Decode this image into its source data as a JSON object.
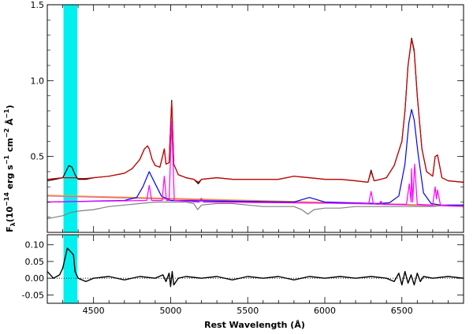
{
  "chart_data": [
    {
      "type": "line",
      "panel": "top",
      "xlabel": "",
      "ylabel": "F",
      "ylabel_sub": "λ",
      "ylabel_units_parts": [
        "(10",
        "−14",
        " erg s",
        "−1",
        " cm",
        "−2",
        " Å",
        "−1",
        ")"
      ],
      "xlim": [
        4200,
        6900
      ],
      "ylim": [
        0,
        1.5
      ],
      "x_ticks": [
        4500,
        5000,
        5500,
        6000,
        6500
      ],
      "y_ticks": [
        0.5,
        1.0,
        1.5
      ],
      "y_tick_labels": [
        "0.5",
        "1.0",
        "1.5"
      ],
      "highlight_band": {
        "x": [
          4305,
          4395
        ],
        "color": "#00f0f0"
      },
      "series": [
        {
          "color": "#000000",
          "x": [
            4200,
            4250,
            4300,
            4320,
            4340,
            4360,
            4380,
            4400,
            4450,
            4500,
            4600,
            4700,
            4750,
            4800,
            4830,
            4850,
            4861,
            4880,
            4900,
            4930,
            4945,
            4959,
            4970,
            4990,
            5007,
            5020,
            5050,
            5100,
            5150,
            5180,
            5200,
            5300,
            5400,
            5500,
            5600,
            5700,
            5800,
            5900,
            6000,
            6100,
            6200,
            6280,
            6300,
            6320,
            6364,
            6400,
            6450,
            6500,
            6520,
            6540,
            6563,
            6580,
            6600,
            6630,
            6660,
            6700,
            6716,
            6731,
            6760,
            6800,
            6900
          ],
          "y": [
            0.34,
            0.35,
            0.36,
            0.4,
            0.44,
            0.43,
            0.38,
            0.35,
            0.35,
            0.36,
            0.37,
            0.39,
            0.42,
            0.48,
            0.55,
            0.57,
            0.55,
            0.48,
            0.44,
            0.43,
            0.49,
            0.55,
            0.45,
            0.46,
            0.87,
            0.45,
            0.38,
            0.36,
            0.35,
            0.32,
            0.35,
            0.36,
            0.35,
            0.35,
            0.35,
            0.35,
            0.37,
            0.36,
            0.35,
            0.35,
            0.34,
            0.33,
            0.41,
            0.34,
            0.35,
            0.36,
            0.44,
            0.6,
            0.8,
            1.1,
            1.28,
            1.2,
            0.9,
            0.55,
            0.4,
            0.37,
            0.5,
            0.51,
            0.36,
            0.34,
            0.33
          ]
        },
        {
          "color": "#d00000",
          "x": [
            4200,
            4250,
            4300,
            4320,
            4340,
            4360,
            4380,
            4400,
            4450,
            4500,
            4600,
            4700,
            4750,
            4800,
            4830,
            4850,
            4861,
            4880,
            4900,
            4930,
            4945,
            4959,
            4970,
            4990,
            5007,
            5020,
            5050,
            5100,
            5150,
            5180,
            5200,
            5300,
            5400,
            5500,
            5600,
            5700,
            5800,
            5900,
            6000,
            6100,
            6200,
            6280,
            6300,
            6320,
            6364,
            6400,
            6450,
            6500,
            6520,
            6540,
            6563,
            6580,
            6600,
            6630,
            6660,
            6700,
            6716,
            6731,
            6760,
            6800,
            6900
          ],
          "y": [
            0.35,
            0.355,
            0.36,
            0.36,
            0.36,
            0.36,
            0.36,
            0.355,
            0.355,
            0.36,
            0.37,
            0.39,
            0.42,
            0.48,
            0.55,
            0.57,
            0.55,
            0.48,
            0.44,
            0.43,
            0.49,
            0.55,
            0.45,
            0.46,
            0.86,
            0.45,
            0.38,
            0.36,
            0.35,
            0.33,
            0.35,
            0.36,
            0.35,
            0.35,
            0.35,
            0.35,
            0.37,
            0.36,
            0.35,
            0.35,
            0.34,
            0.33,
            0.4,
            0.34,
            0.35,
            0.36,
            0.44,
            0.6,
            0.8,
            1.1,
            1.27,
            1.19,
            0.9,
            0.55,
            0.4,
            0.37,
            0.5,
            0.51,
            0.36,
            0.34,
            0.33
          ]
        },
        {
          "color": "#808080",
          "x": [
            4200,
            4300,
            4350,
            4400,
            4500,
            4600,
            4700,
            4800,
            4900,
            5000,
            5100,
            5150,
            5175,
            5200,
            5300,
            5400,
            5500,
            5600,
            5700,
            5800,
            5850,
            5890,
            5930,
            6000,
            6100,
            6200,
            6300,
            6400,
            6500,
            6600,
            6700,
            6800,
            6900
          ],
          "y": [
            0.09,
            0.11,
            0.13,
            0.14,
            0.15,
            0.17,
            0.18,
            0.19,
            0.2,
            0.2,
            0.2,
            0.19,
            0.15,
            0.18,
            0.19,
            0.19,
            0.18,
            0.17,
            0.17,
            0.17,
            0.15,
            0.12,
            0.15,
            0.16,
            0.16,
            0.17,
            0.17,
            0.17,
            0.17,
            0.17,
            0.17,
            0.18,
            0.18
          ]
        },
        {
          "color": "#ffa000",
          "x": [
            4200,
            6900
          ],
          "y": [
            0.245,
            0.175
          ]
        },
        {
          "color": "#e060c0",
          "x": [
            4200,
            6900
          ],
          "y": [
            0.24,
            0.17
          ]
        },
        {
          "color": "#0000ff",
          "x": [
            4200,
            4700,
            4780,
            4820,
            4861,
            4900,
            4940,
            5000,
            5800,
            5850,
            5900,
            5950,
            6000,
            6350,
            6420,
            6480,
            6520,
            6545,
            6563,
            6580,
            6605,
            6640,
            6690,
            6750,
            6900
          ],
          "y": [
            0.2,
            0.21,
            0.23,
            0.3,
            0.4,
            0.32,
            0.24,
            0.21,
            0.2,
            0.215,
            0.23,
            0.215,
            0.2,
            0.19,
            0.195,
            0.24,
            0.45,
            0.72,
            0.81,
            0.74,
            0.52,
            0.26,
            0.19,
            0.18,
            0.18
          ]
        },
        {
          "color": "#ff00ff",
          "x": [
            4200,
            4845,
            4861,
            4877,
            4945,
            4959,
            4973,
            4990,
            5007,
            5024,
            5185,
            5199,
            5213,
            6285,
            6300,
            6315,
            6350,
            6364,
            6378,
            6530,
            6548,
            6560,
            6563,
            6570,
            6583,
            6600,
            6700,
            6716,
            6724,
            6731,
            6750,
            6900
          ],
          "y": [
            0.2,
            0.21,
            0.31,
            0.21,
            0.21,
            0.37,
            0.21,
            0.21,
            0.73,
            0.21,
            0.2,
            0.225,
            0.2,
            0.19,
            0.27,
            0.19,
            0.185,
            0.205,
            0.185,
            0.185,
            0.32,
            0.2,
            0.42,
            0.2,
            0.45,
            0.185,
            0.18,
            0.3,
            0.22,
            0.28,
            0.18,
            0.17
          ]
        }
      ]
    },
    {
      "type": "line",
      "panel": "residual",
      "xlabel": "Rest Wavelength (Å)",
      "ylabel": "",
      "xlim": [
        4200,
        6900
      ],
      "ylim": [
        -0.075,
        0.13
      ],
      "x_ticks": [
        4500,
        5000,
        5500,
        6000,
        6500
      ],
      "x_tick_labels": [
        "4500",
        "5000",
        "5500",
        "6000",
        "6500"
      ],
      "y_ticks": [
        -0.05,
        0.0,
        0.05,
        0.1
      ],
      "y_tick_labels": [
        "-0.05",
        "0.00",
        "0.05",
        "0.10"
      ],
      "highlight_band": {
        "x": [
          4305,
          4395
        ],
        "color": "#00f0f0"
      },
      "series": [
        {
          "color": "#000000",
          "x": [
            4200,
            4240,
            4280,
            4300,
            4320,
            4330,
            4350,
            4370,
            4380,
            4400,
            4450,
            4500,
            4600,
            4700,
            4800,
            4900,
            4950,
            4970,
            4990,
            5000,
            5010,
            5020,
            5050,
            5100,
            5200,
            5300,
            5400,
            5500,
            5600,
            5700,
            5800,
            5900,
            6000,
            6100,
            6200,
            6300,
            6400,
            6450,
            6480,
            6500,
            6520,
            6540,
            6560,
            6580,
            6600,
            6620,
            6640,
            6700,
            6800,
            6900
          ],
          "y": [
            0.02,
            0.0,
            0.01,
            0.03,
            0.07,
            0.09,
            0.08,
            0.07,
            0.02,
            0.0,
            -0.01,
            0.0,
            0.005,
            -0.005,
            0.005,
            0.0,
            0.01,
            -0.01,
            0.015,
            -0.025,
            0.02,
            -0.02,
            0.0,
            0.005,
            0.0,
            0.005,
            -0.005,
            0.005,
            0.0,
            0.005,
            -0.005,
            0.005,
            0.0,
            0.005,
            0.0,
            0.005,
            0.0,
            -0.01,
            0.015,
            -0.02,
            0.02,
            -0.015,
            0.01,
            -0.02,
            0.015,
            -0.01,
            0.005,
            0.0,
            0.005,
            0.0
          ]
        }
      ]
    }
  ]
}
